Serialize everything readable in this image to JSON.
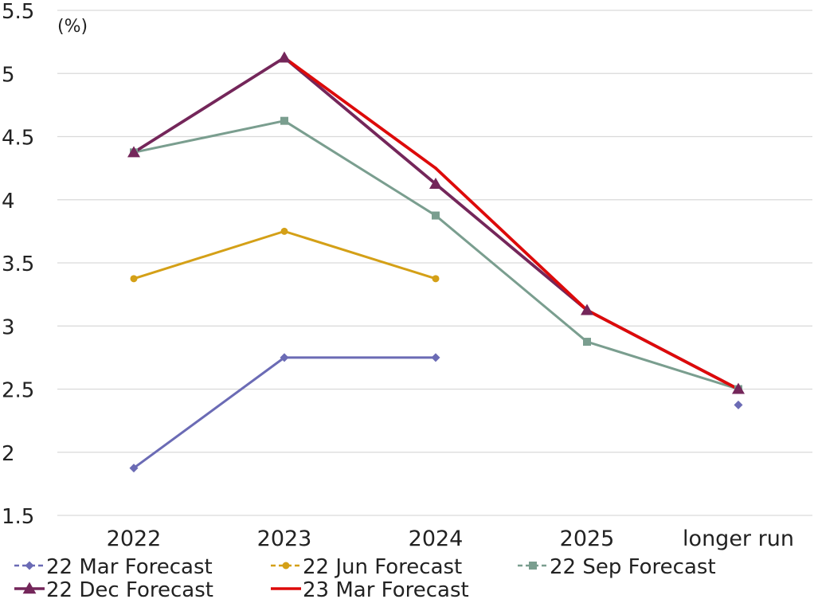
{
  "chart_data": {
    "type": "line",
    "unit_label": "(%)",
    "categories": [
      "2022",
      "2023",
      "2024",
      "2025",
      "longer run"
    ],
    "ylim": [
      1.5,
      5.5
    ],
    "yticks": [
      "1.5",
      "2",
      "2.5",
      "3",
      "3.5",
      "4",
      "4.5",
      "5",
      "5.5"
    ],
    "grid": "horizontal",
    "legend_position": "bottom",
    "series": [
      {
        "name": "22 Mar Forecast",
        "color": "#6b6bb5",
        "marker": "diamond",
        "dashed_legend": true,
        "values": [
          1.875,
          2.75,
          2.75,
          null,
          2.375
        ],
        "connect": [
          [
            0,
            1
          ],
          [
            1,
            2
          ]
        ]
      },
      {
        "name": "22 Jun Forecast",
        "color": "#d4a017",
        "marker": "circle",
        "dashed_legend": true,
        "values": [
          3.375,
          3.75,
          3.375,
          null,
          null
        ],
        "connect": [
          [
            0,
            1
          ],
          [
            1,
            2
          ]
        ]
      },
      {
        "name": "22 Sep Forecast",
        "color": "#7a9e8f",
        "marker": "square",
        "dashed_legend": true,
        "values": [
          4.375,
          4.625,
          3.875,
          2.875,
          2.5
        ],
        "connect": [
          [
            0,
            1
          ],
          [
            1,
            2
          ],
          [
            2,
            3
          ],
          [
            3,
            4
          ]
        ]
      },
      {
        "name": "22 Dec Forecast",
        "color": "#74265a",
        "marker": "triangle",
        "dashed_legend": false,
        "values": [
          4.375,
          5.125,
          4.125,
          3.125,
          2.5
        ],
        "connect": [
          [
            0,
            1
          ],
          [
            1,
            2
          ],
          [
            2,
            3
          ],
          [
            3,
            4
          ]
        ]
      },
      {
        "name": "23 Mar Forecast",
        "color": "#dd0a0a",
        "marker": "none",
        "dashed_legend": false,
        "values": [
          null,
          5.125,
          4.25,
          3.125,
          2.5
        ],
        "connect": [
          [
            1,
            2
          ],
          [
            2,
            3
          ],
          [
            3,
            4
          ]
        ]
      }
    ]
  }
}
